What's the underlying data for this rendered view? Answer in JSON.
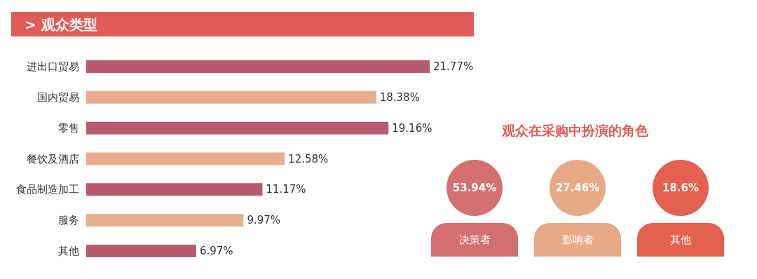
{
  "chart_data": [
    {
      "type": "bar",
      "orientation": "horizontal",
      "title": "> 观众类型",
      "categories": [
        "进出口贸易",
        "国内贸易",
        "零售",
        "餐饮及酒店",
        "食品制造加工",
        "服务",
        "其他"
      ],
      "values": [
        21.77,
        18.38,
        19.16,
        12.58,
        11.17,
        9.97,
        6.97
      ],
      "colors": [
        "#b75a6e",
        "#e8ad8a",
        "#b75a6e",
        "#e8ad8a",
        "#b75a6e",
        "#e8ad8a",
        "#b75a6e"
      ],
      "value_labels": [
        "21.77%",
        "18.38%",
        "19.16%",
        "12.58%",
        "11.17%",
        "9.97%",
        "6.97%"
      ]
    },
    {
      "type": "other",
      "title": "观众在采购中扮演的角色",
      "categories": [
        "决策者",
        "影响者",
        "其他"
      ],
      "colors": [
        "#d4706f",
        "#e8a986",
        "#e4604f"
      ],
      "value_labels": [
        "53.94%",
        "27.46%",
        "18.6%"
      ]
    }
  ]
}
